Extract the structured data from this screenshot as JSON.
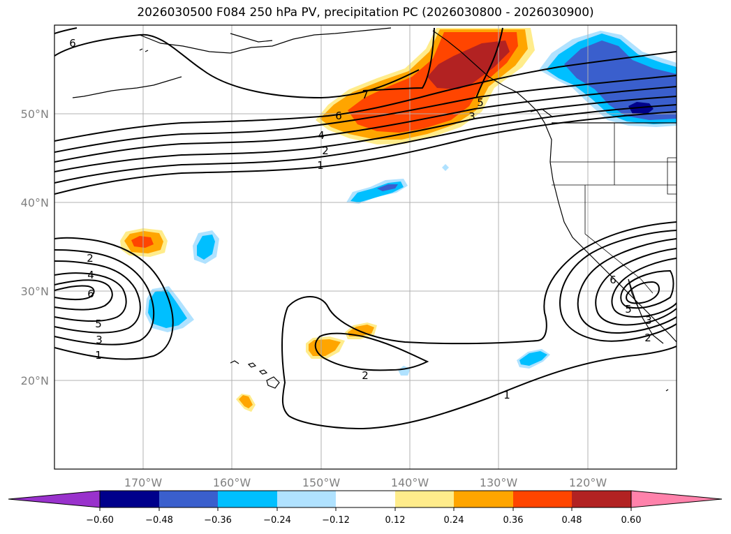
{
  "title": "2026030500 F084 250 hPa PV, precipitation PC (2026030800 - 2026030900)",
  "colors": {
    "background": "#ffffff",
    "grid": "#b0b0b0",
    "contour": "#000000",
    "coast": "#000000"
  },
  "map": {
    "lon_range": [
      -180,
      -110
    ],
    "lat_range": [
      10,
      60
    ],
    "lat_ticks": [
      "20°N",
      "30°N",
      "40°N",
      "50°N"
    ],
    "lon_ticks": [
      "170°W",
      "160°W",
      "150°W",
      "140°W",
      "130°W",
      "120°W"
    ]
  },
  "colorbar": {
    "ticks": [
      "−0.60",
      "−0.48",
      "−0.36",
      "−0.24",
      "−0.12",
      "0.12",
      "0.24",
      "0.36",
      "0.48",
      "0.60"
    ],
    "colors": [
      "#9932cc",
      "#00008b",
      "#3a5fcd",
      "#00bfff",
      "#b0e2ff",
      "#ffffff",
      "#ffec8b",
      "#ffa500",
      "#ff4500",
      "#b22222",
      "#ff82ab"
    ]
  },
  "contour_labels": {
    "north_jet": [
      "7",
      "6",
      "5",
      "4",
      "3",
      "2",
      "1"
    ],
    "west_low": [
      "2",
      "4",
      "6",
      "5",
      "3",
      "1"
    ],
    "east_low": [
      "6",
      "5",
      "3",
      "2"
    ],
    "subtropical": [
      "2",
      "1"
    ],
    "top_left": [
      "6"
    ]
  }
}
